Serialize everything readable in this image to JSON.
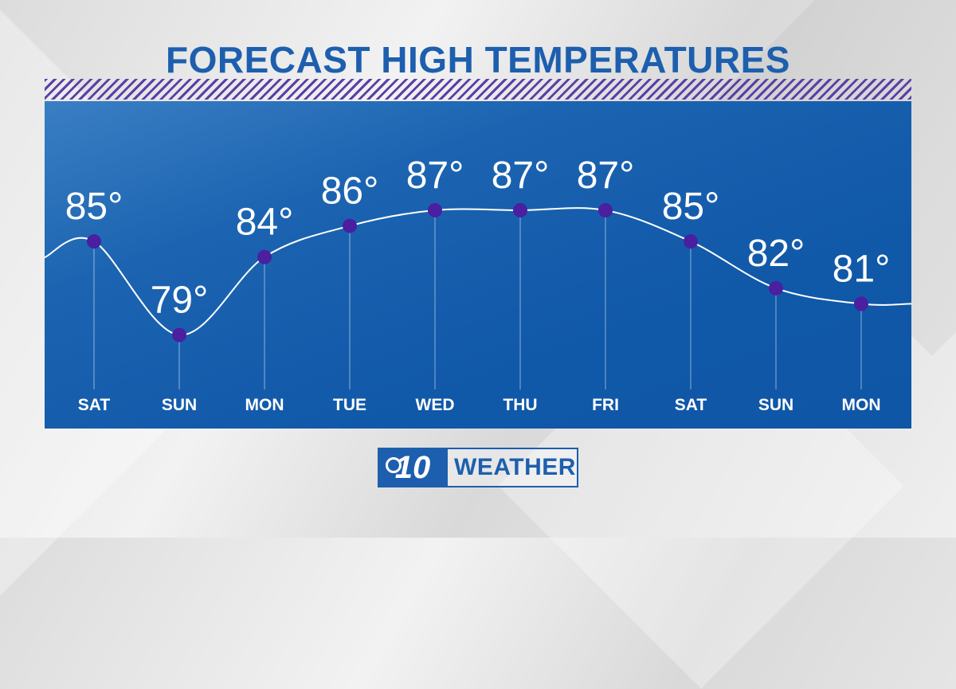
{
  "chart_data": {
    "type": "line",
    "title": "FORECAST HIGH TEMPERATURES",
    "categories": [
      "SAT",
      "SUN",
      "MON",
      "TUE",
      "WED",
      "THU",
      "FRI",
      "SAT",
      "SUN",
      "MON"
    ],
    "values": [
      85,
      79,
      84,
      86,
      87,
      87,
      87,
      85,
      82,
      81
    ],
    "data_labels": [
      "85°",
      "79°",
      "84°",
      "86°",
      "87°",
      "87°",
      "87°",
      "85°",
      "82°",
      "81°"
    ],
    "ylim": [
      73,
      94
    ],
    "grid": false,
    "colors": {
      "line": "#ffffff",
      "point": "#4a1fa0",
      "panel": "#1058a8",
      "title": "#1d5fae",
      "hatch": "#5b3fa6"
    }
  },
  "logo": {
    "mark": "10",
    "text": "WEATHER"
  }
}
